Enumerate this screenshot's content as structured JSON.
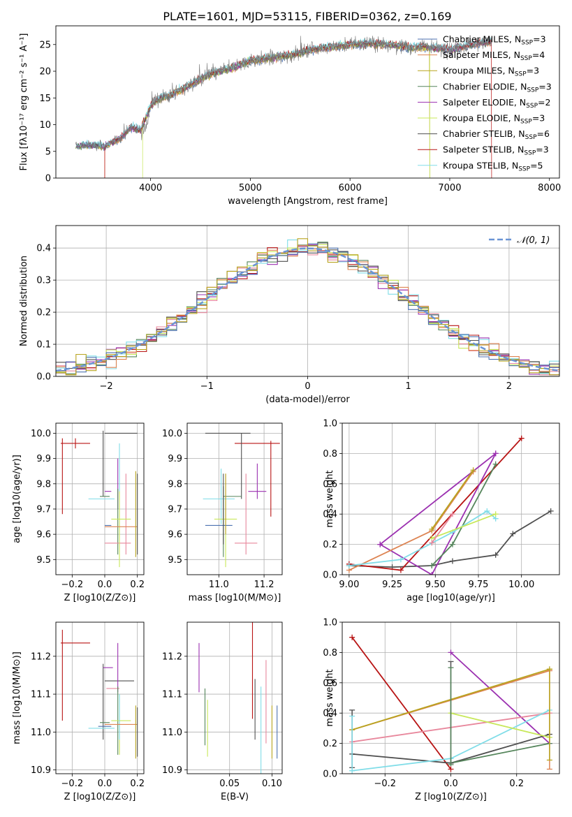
{
  "colors": {
    "c0": "#4c72b0",
    "c1": "#dd8452",
    "c2": "#b8a41f",
    "c3": "#55855b",
    "c4": "#9b30b0",
    "c5": "#c8e85a",
    "c6": "#4f4f4f",
    "c7": "#b81414",
    "c8": "#80dde8",
    "c9": "#e8879c",
    "normal": "#6a94d4",
    "grid": "#b0b0b0"
  },
  "chart_data": [
    {
      "type": "line",
      "title": "PLATE=1601, MJD=53115, FIBERID=0362, z=0.169",
      "xlabel": "wavelength [Angstrom, rest frame]",
      "ylabel": "Flux [fλ10⁻¹⁷ erg cm⁻² s⁻¹ A⁻¹]",
      "xlim": [
        3050,
        8100
      ],
      "ylim": [
        0,
        28.5
      ],
      "xticks": [
        4000,
        5000,
        6000,
        7000,
        8000
      ],
      "yticks": [
        0,
        5,
        10,
        15,
        20,
        25
      ],
      "grid": false,
      "legend": "right",
      "series": [
        {
          "name": "Chabrier MILES, NSSP=3",
          "color": "c0"
        },
        {
          "name": "Salpeter MILES, NSSP=4",
          "color": "c1"
        },
        {
          "name": "Kroupa MILES, NSSP=3",
          "color": "c2"
        },
        {
          "name": "Chabrier ELODIE, NSSP=3",
          "color": "c3"
        },
        {
          "name": "Salpeter ELODIE, NSSP=2",
          "color": "c4"
        },
        {
          "name": "Kroupa ELODIE, NSSP=3",
          "color": "c5"
        },
        {
          "name": "Chabrier STELIB, NSSP=6",
          "color": "c6"
        },
        {
          "name": "Salpeter STELIB, NSSP=3",
          "color": "c7"
        },
        {
          "name": "Kroupa STELIB, NSSP=5",
          "color": "c8"
        }
      ],
      "spectrum_envelope": {
        "x": [
          3250,
          3400,
          3550,
          3700,
          3800,
          3900,
          4000,
          4100,
          4200,
          4400,
          4600,
          4800,
          5000,
          5200,
          5400,
          5600,
          5800,
          6000,
          6200,
          6400,
          6600,
          6800,
          7000,
          7200,
          7400
        ],
        "y": [
          6.0,
          6.2,
          6.0,
          7.5,
          9.5,
          9.0,
          13.5,
          15.0,
          15.5,
          17.5,
          19.5,
          20.5,
          22.0,
          22.5,
          23.0,
          24.0,
          24.5,
          25.0,
          25.2,
          25.0,
          24.5,
          24.5,
          24.0,
          25.0,
          25.5
        ]
      },
      "edge_drops": {
        "c7": [
          3540,
          7420
        ],
        "c1": [
          3540
        ],
        "c5": [
          3920,
          6800
        ],
        "c2": [
          6800
        ]
      }
    },
    {
      "type": "bar",
      "subtype": "step-histogram",
      "xlabel": "(data-model)/error",
      "ylabel": "Normed distribution",
      "xlim": [
        -2.5,
        2.5
      ],
      "ylim": [
        0,
        0.47
      ],
      "xticks": [
        -2,
        -1,
        0,
        1,
        2
      ],
      "yticks": [
        0.0,
        0.1,
        0.2,
        0.3,
        0.4
      ],
      "grid": true,
      "legend": "top-right",
      "legend_label": "𝒩(0, 1)",
      "bin_width": 0.1,
      "x_start": -2.5
    },
    {
      "type": "scatter",
      "subtype": "errorbar",
      "xlabel": "Z [log10(Z/Z⊙)]",
      "ylabel": "age [log10(age/yr)]",
      "xlim": [
        -0.3,
        0.24
      ],
      "ylim": [
        9.44,
        10.04
      ],
      "xticks": [
        -0.2,
        0.0,
        0.2
      ],
      "yticks": [
        9.5,
        9.6,
        9.7,
        9.8,
        9.9,
        10.0
      ],
      "grid": true,
      "points": [
        {
          "c": "c7",
          "x": -0.18,
          "xe": 0.09,
          "y": 9.96,
          "ye": 0.02
        },
        {
          "c": "c7",
          "x": -0.26,
          "xe": 0.0,
          "y": 9.83,
          "ye": 0.15
        },
        {
          "c": "c6",
          "x": 0.1,
          "xe": 0.1,
          "y": 10.0,
          "ye": 0.0
        },
        {
          "c": "c6",
          "x": -0.01,
          "xe": 0.0,
          "y": 9.88,
          "ye": 0.13
        },
        {
          "c": "c4",
          "x": 0.02,
          "xe": 0.02,
          "y": 9.77,
          "ye": 0.0
        },
        {
          "c": "c4",
          "x": 0.08,
          "xe": 0.0,
          "y": 9.8,
          "ye": 0.1
        },
        {
          "c": "c3",
          "x": 0.0,
          "xe": 0.03,
          "y": 9.75,
          "ye": 0.0
        },
        {
          "c": "c3",
          "x": 0.08,
          "xe": 0.0,
          "y": 9.65,
          "ye": 0.13
        },
        {
          "c": "c8",
          "x": -0.02,
          "xe": 0.08,
          "y": 9.74,
          "ye": 0.0
        },
        {
          "c": "c8",
          "x": 0.09,
          "xe": 0.0,
          "y": 9.86,
          "ye": 0.1
        },
        {
          "c": "c9",
          "x": 0.13,
          "xe": 0.0,
          "y": 9.68,
          "ye": 0.16
        },
        {
          "c": "c9",
          "x": 0.08,
          "xe": 0.08,
          "y": 9.565,
          "ye": 0.0
        },
        {
          "c": "c5",
          "x": 0.09,
          "xe": 0.0,
          "y": 9.62,
          "ye": 0.15
        },
        {
          "c": "c5",
          "x": 0.1,
          "xe": 0.06,
          "y": 9.66,
          "ye": 0.0
        },
        {
          "c": "c0",
          "x": 0.02,
          "xe": 0.02,
          "y": 9.635,
          "ye": 0.0
        },
        {
          "c": "c1",
          "x": 0.1,
          "xe": 0.1,
          "y": 9.63,
          "ye": 0.0
        },
        {
          "c": "c2",
          "x": 0.19,
          "xe": 0.0,
          "y": 9.68,
          "ye": 0.17
        },
        {
          "c": "c6",
          "x": 0.2,
          "xe": 0.0,
          "y": 9.68,
          "ye": 0.16
        }
      ]
    },
    {
      "type": "scatter",
      "subtype": "errorbar",
      "xlabel": "mass [log10(M/M⊙)]",
      "ylabel": "",
      "xlim": [
        10.86,
        11.28
      ],
      "ylim": [
        9.44,
        10.04
      ],
      "xticks": [
        11.0,
        11.2
      ],
      "yticks": [
        9.5,
        9.6,
        9.7,
        9.8,
        9.9,
        10.0
      ],
      "grid": true,
      "points": [
        {
          "c": "c7",
          "x": 11.17,
          "xe": 0.1,
          "y": 9.96,
          "ye": 0.0
        },
        {
          "c": "c7",
          "x": 11.23,
          "xe": 0.0,
          "y": 9.82,
          "ye": 0.15
        },
        {
          "c": "c6",
          "x": 11.04,
          "xe": 0.1,
          "y": 10.0,
          "ye": 0.0
        },
        {
          "c": "c6",
          "x": 11.1,
          "xe": 0.0,
          "y": 9.87,
          "ye": 0.13
        },
        {
          "c": "c4",
          "x": 11.17,
          "xe": 0.04,
          "y": 9.77,
          "ye": 0.0
        },
        {
          "c": "c4",
          "x": 11.17,
          "xe": 0.0,
          "y": 9.81,
          "ye": 0.07
        },
        {
          "c": "c3",
          "x": 11.06,
          "xe": 0.04,
          "y": 9.75,
          "ye": 0.0
        },
        {
          "c": "c3",
          "x": 11.02,
          "xe": 0.0,
          "y": 9.65,
          "ye": 0.14
        },
        {
          "c": "c8",
          "x": 11.0,
          "xe": 0.07,
          "y": 9.74,
          "ye": 0.0
        },
        {
          "c": "c8",
          "x": 11.01,
          "xe": 0.0,
          "y": 9.75,
          "ye": 0.11
        },
        {
          "c": "c9",
          "x": 11.12,
          "xe": 0.0,
          "y": 9.68,
          "ye": 0.16
        },
        {
          "c": "c9",
          "x": 11.12,
          "xe": 0.05,
          "y": 9.565,
          "ye": 0.0
        },
        {
          "c": "c5",
          "x": 11.03,
          "xe": 0.0,
          "y": 9.6,
          "ye": 0.13
        },
        {
          "c": "c5",
          "x": 11.03,
          "xe": 0.05,
          "y": 9.66,
          "ye": 0.0
        },
        {
          "c": "c0",
          "x": 11.0,
          "xe": 0.06,
          "y": 9.635,
          "ye": 0.0
        },
        {
          "c": "c1",
          "x": 11.03,
          "xe": 0.0,
          "y": 9.73,
          "ye": 0.11
        },
        {
          "c": "c2",
          "x": 11.03,
          "xe": 0.0,
          "y": 9.72,
          "ye": 0.12
        },
        {
          "c": "c6",
          "x": 11.02,
          "xe": 0.0,
          "y": 9.7,
          "ye": 0.14
        }
      ]
    },
    {
      "type": "line",
      "xlabel": "age [log10(age/yr)]",
      "ylabel": "mass weight",
      "xlim": [
        8.96,
        10.22
      ],
      "ylim": [
        0,
        1.0
      ],
      "xticks": [
        9.0,
        9.25,
        9.5,
        9.75,
        10.0
      ],
      "yticks": [
        0.0,
        0.2,
        0.4,
        0.6,
        0.8,
        1.0
      ],
      "grid": true,
      "series": [
        {
          "c": "c6",
          "x": [
            9.0,
            9.25,
            9.48,
            9.6,
            9.85,
            9.95,
            10.17
          ],
          "y": [
            0.06,
            0.05,
            0.06,
            0.09,
            0.13,
            0.27,
            0.42
          ]
        },
        {
          "c": "c7",
          "x": [
            9.0,
            9.3,
            10.0
          ],
          "y": [
            0.07,
            0.03,
            0.9
          ]
        },
        {
          "c": "c4",
          "x": [
            9.18,
            9.48,
            9.85
          ],
          "y": [
            0.2,
            0.0,
            0.8
          ]
        },
        {
          "c": "c4",
          "x": [
            9.18,
            9.85
          ],
          "y": [
            0.2,
            0.8
          ]
        },
        {
          "c": "c3",
          "x": [
            9.48,
            9.6,
            9.85
          ],
          "y": [
            0.06,
            0.2,
            0.73
          ]
        },
        {
          "c": "c1",
          "x": [
            9.0,
            9.48,
            9.72
          ],
          "y": [
            0.03,
            0.29,
            0.68
          ]
        },
        {
          "c": "c2",
          "x": [
            9.48,
            9.72
          ],
          "y": [
            0.3,
            0.69
          ]
        },
        {
          "c": "c8",
          "x": [
            9.0,
            9.3,
            9.6,
            9.8,
            9.85
          ],
          "y": [
            0.06,
            0.1,
            0.28,
            0.42,
            0.37
          ]
        },
        {
          "c": "c5",
          "x": [
            9.48,
            9.85
          ],
          "y": [
            0.24,
            0.4
          ]
        },
        {
          "c": "c9",
          "x": [
            9.48,
            9.6
          ],
          "y": [
            0.21,
            0.4
          ]
        }
      ]
    },
    {
      "type": "scatter",
      "subtype": "errorbar",
      "xlabel": "Z [log10(Z/Z⊙)]",
      "ylabel": "mass [log10(M/M⊙)]",
      "xlim": [
        -0.3,
        0.24
      ],
      "ylim": [
        10.89,
        11.29
      ],
      "xticks": [
        -0.2,
        0.0,
        0.2
      ],
      "yticks": [
        10.9,
        11.0,
        11.1,
        11.2
      ],
      "grid": true,
      "points": [
        {
          "c": "c7",
          "x": -0.18,
          "xe": 0.09,
          "y": 11.235,
          "ye": 0.0
        },
        {
          "c": "c7",
          "x": -0.26,
          "xe": 0.0,
          "y": 11.15,
          "ye": 0.12
        },
        {
          "c": "c6",
          "x": 0.09,
          "xe": 0.09,
          "y": 11.135,
          "ye": 0.0
        },
        {
          "c": "c6",
          "x": -0.01,
          "xe": 0.0,
          "y": 11.08,
          "ye": 0.1
        },
        {
          "c": "c4",
          "x": 0.02,
          "xe": 0.03,
          "y": 11.17,
          "ye": 0.0
        },
        {
          "c": "c4",
          "x": 0.08,
          "xe": 0.0,
          "y": 11.17,
          "ye": 0.065
        },
        {
          "c": "c9",
          "x": 0.05,
          "xe": 0.04,
          "y": 11.115,
          "ye": 0.0
        },
        {
          "c": "c3",
          "x": 0.0,
          "xe": 0.03,
          "y": 11.025,
          "ye": 0.0
        },
        {
          "c": "c3",
          "x": 0.08,
          "xe": 0.0,
          "y": 11.03,
          "ye": 0.09
        },
        {
          "c": "c5",
          "x": 0.1,
          "xe": 0.06,
          "y": 11.03,
          "ye": 0.0
        },
        {
          "c": "c5",
          "x": 0.09,
          "xe": 0.0,
          "y": 11.02,
          "ye": 0.08
        },
        {
          "c": "c8",
          "x": -0.02,
          "xe": 0.08,
          "y": 11.01,
          "ye": 0.0
        },
        {
          "c": "c8",
          "x": 0.09,
          "xe": 0.0,
          "y": 11.04,
          "ye": 0.06
        },
        {
          "c": "c0",
          "x": 0.0,
          "xe": 0.04,
          "y": 11.015,
          "ye": 0.0
        },
        {
          "c": "c1",
          "x": 0.1,
          "xe": 0.1,
          "y": 11.02,
          "ye": 0.0
        },
        {
          "c": "c2",
          "x": 0.19,
          "xe": 0.0,
          "y": 11.0,
          "ye": 0.07
        },
        {
          "c": "c6",
          "x": 0.2,
          "xe": 0.0,
          "y": 11.0,
          "ye": 0.065
        }
      ]
    },
    {
      "type": "scatter",
      "subtype": "errorbar",
      "xlabel": "E(B-V)",
      "ylabel": "",
      "xlim": [
        0.0,
        0.112
      ],
      "ylim": [
        10.89,
        11.29
      ],
      "xticks": [
        0.05,
        0.1
      ],
      "yticks": [
        10.9,
        11.0,
        11.1,
        11.2
      ],
      "grid": true,
      "points": [
        {
          "c": "c4",
          "x": 0.014,
          "xe": 0.0,
          "y": 11.17,
          "ye": 0.065
        },
        {
          "c": "c3",
          "x": 0.021,
          "xe": 0.0,
          "y": 11.04,
          "ye": 0.075
        },
        {
          "c": "c5",
          "x": 0.024,
          "xe": 0.0,
          "y": 11.01,
          "ye": 0.075
        },
        {
          "c": "c7",
          "x": 0.077,
          "xe": 0.0,
          "y": 11.18,
          "ye": 0.145
        },
        {
          "c": "c6",
          "x": 0.08,
          "xe": 0.0,
          "y": 11.06,
          "ye": 0.08
        },
        {
          "c": "c8",
          "x": 0.087,
          "xe": 0.0,
          "y": 11.0,
          "ye": 0.12
        },
        {
          "c": "c9",
          "x": 0.093,
          "xe": 0.0,
          "y": 11.08,
          "ye": 0.11
        },
        {
          "c": "c2",
          "x": 0.1,
          "xe": 0.0,
          "y": 11.0,
          "ye": 0.07
        },
        {
          "c": "c0",
          "x": 0.106,
          "xe": 0.0,
          "y": 11.0,
          "ye": 0.07
        }
      ]
    },
    {
      "type": "line",
      "xlabel": "Z [log10(Z/Z⊙)]",
      "ylabel": "mass weight",
      "xlim": [
        -0.33,
        0.33
      ],
      "ylim": [
        0,
        1.0
      ],
      "xticks": [
        -0.2,
        0.0,
        0.2
      ],
      "yticks": [
        0.0,
        0.2,
        0.4,
        0.6,
        0.8,
        1.0
      ],
      "grid": true,
      "series": [
        {
          "c": "c7",
          "x": [
            -0.3,
            0.0
          ],
          "y": [
            0.9,
            0.03
          ]
        },
        {
          "c": "c4",
          "x": [
            0.0,
            0.3
          ],
          "y": [
            0.8,
            0.2
          ]
        },
        {
          "c": "c1",
          "x": [
            -0.3,
            0.3
          ],
          "y": [
            0.29,
            0.68
          ]
        },
        {
          "c": "c2",
          "x": [
            -0.3,
            0.3
          ],
          "y": [
            0.29,
            0.69
          ]
        },
        {
          "c": "c9",
          "x": [
            -0.3,
            0.3
          ],
          "y": [
            0.21,
            0.4
          ]
        },
        {
          "c": "c6",
          "x": [
            -0.3,
            0.0,
            0.3
          ],
          "y": [
            0.13,
            0.07,
            0.26
          ]
        },
        {
          "c": "c3",
          "x": [
            0.0,
            0.3
          ],
          "y": [
            0.07,
            0.2
          ]
        },
        {
          "c": "c8",
          "x": [
            -0.3,
            0.0,
            0.3
          ],
          "y": [
            0.02,
            0.1,
            0.42
          ]
        },
        {
          "c": "c5",
          "x": [
            0.0,
            0.3
          ],
          "y": [
            0.4,
            0.24
          ]
        }
      ],
      "vertical_markers": [
        {
          "c": "c6",
          "x": -0.3,
          "y": [
            0.04,
            0.42
          ]
        },
        {
          "c": "c8",
          "x": -0.3,
          "y": [
            0.02,
            0.38
          ]
        },
        {
          "c": "c6",
          "x": 0.0,
          "y": [
            0.07,
            0.74
          ]
        },
        {
          "c": "c3",
          "x": 0.0,
          "y": [
            0.06,
            0.7
          ]
        },
        {
          "c": "c1",
          "x": 0.3,
          "y": [
            0.03,
            0.68
          ]
        },
        {
          "c": "c2",
          "x": 0.3,
          "y": [
            0.09,
            0.69
          ]
        }
      ]
    }
  ]
}
